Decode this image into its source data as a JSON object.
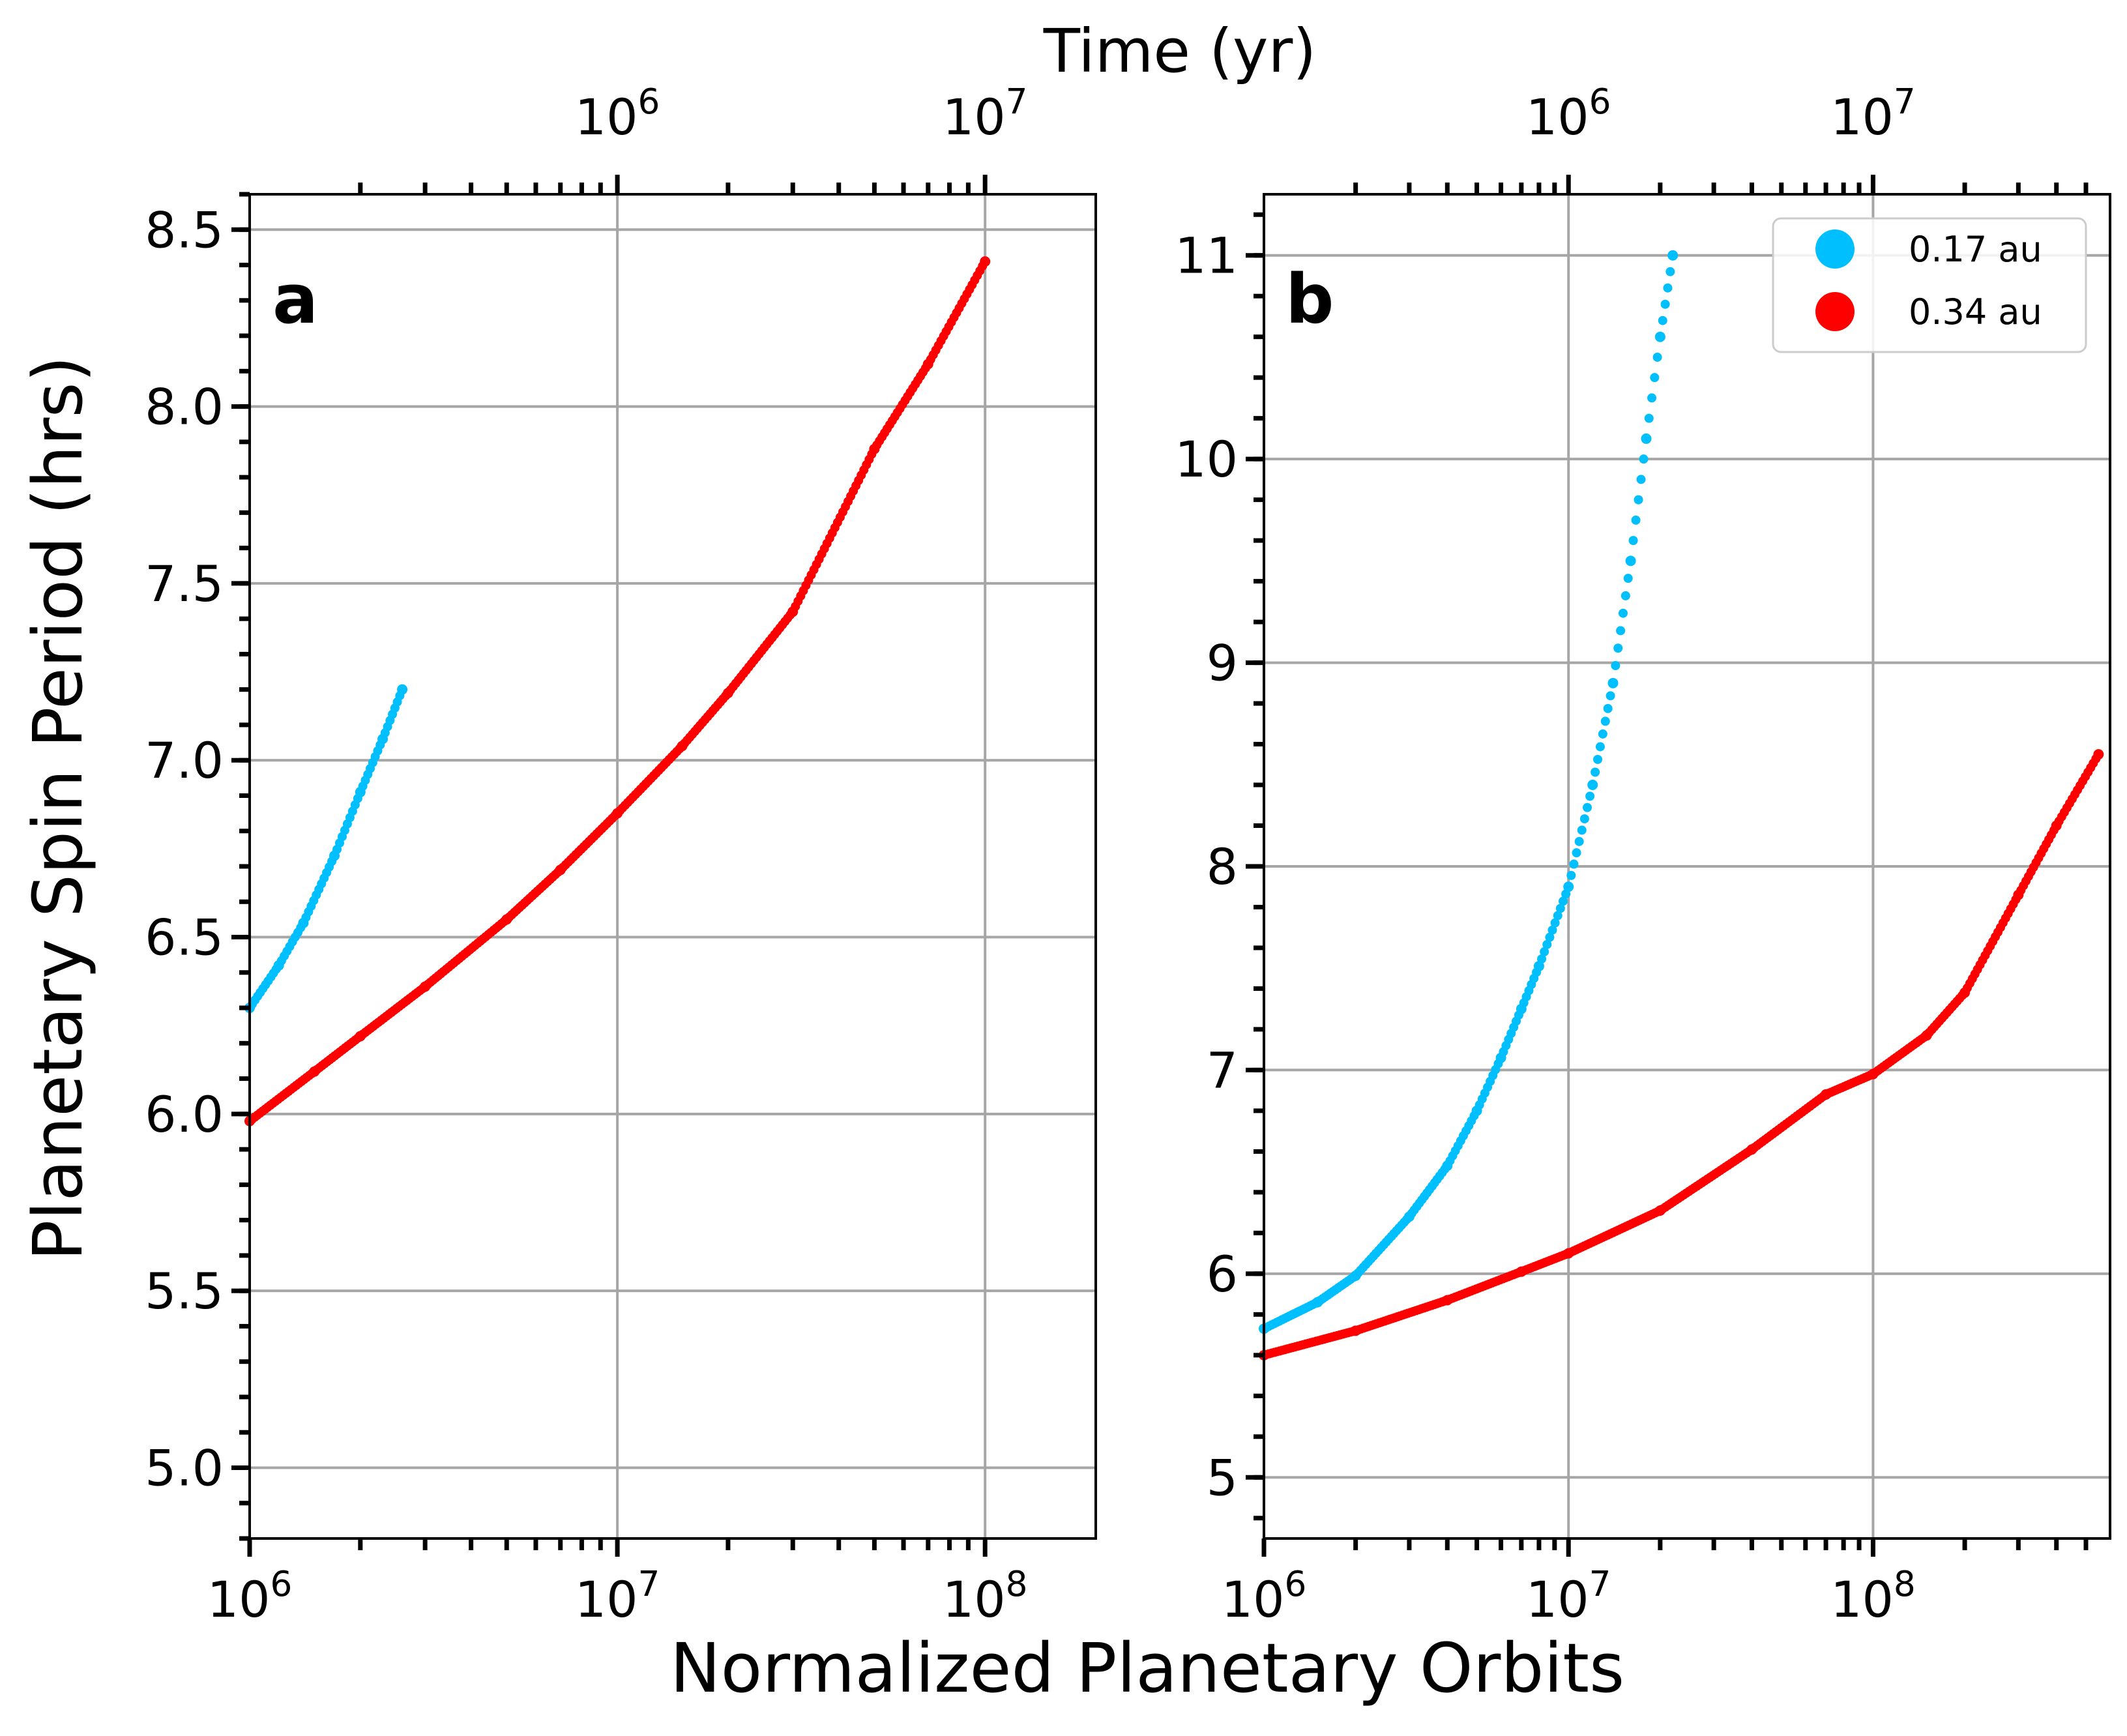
{
  "figure": {
    "top_axis_title": "Time (yr)",
    "bottom_axis_title": "Normalized Planetary Orbits",
    "y_axis_title": "Planetary Spin Period (hrs)"
  },
  "colors": {
    "series_0_17": "#00bfff",
    "series_0_34": "#ff0000",
    "grid": "#a6a6a6"
  },
  "chart_data": [
    {
      "type": "scatter",
      "panel_label": "a",
      "xscale": "log",
      "xlim": [
        1000000,
        200000000
      ],
      "ylim": [
        4.8,
        8.6
      ],
      "xlabel": "Normalized Planetary Orbits",
      "ylabel": "Planetary Spin Period (hrs)",
      "x_ticks": [
        1000000,
        10000000,
        100000000
      ],
      "x_tick_labels": [
        {
          "base": "10",
          "exp": "6"
        },
        {
          "base": "10",
          "exp": "7"
        },
        {
          "base": "10",
          "exp": "8"
        }
      ],
      "y_ticks": [
        5.0,
        5.5,
        6.0,
        6.5,
        7.0,
        7.5,
        8.0,
        8.5
      ],
      "y_tick_labels": [
        "5.0",
        "5.5",
        "6.0",
        "6.5",
        "7.0",
        "7.5",
        "8.0",
        "8.5"
      ],
      "top_axis": {
        "label": "Time (yr)",
        "ticks": [
          1000000,
          10000000
        ],
        "tick_labels": [
          {
            "base": "10",
            "exp": "6"
          },
          {
            "base": "10",
            "exp": "7"
          }
        ],
        "orbits_to_time_factor": 0.1
      },
      "grid": true,
      "series": [
        {
          "name": "0.17 au",
          "color": "#00bfff",
          "x": [
            1000000,
            1200000,
            1400000,
            1700000,
            2000000,
            2300000,
            2600000
          ],
          "y": [
            6.3,
            6.42,
            6.54,
            6.73,
            6.91,
            7.06,
            7.2
          ]
        },
        {
          "name": "0.34 au",
          "color": "#ff0000",
          "x": [
            1000000,
            1500000,
            2000000,
            3000000,
            5000000,
            7000000,
            10000000,
            15000000,
            20000000,
            30000000,
            50000000,
            70000000,
            100000000
          ],
          "y": [
            5.98,
            6.12,
            6.22,
            6.36,
            6.55,
            6.69,
            6.85,
            7.04,
            7.19,
            7.42,
            7.88,
            8.12,
            8.41
          ]
        }
      ]
    },
    {
      "type": "scatter",
      "panel_label": "b",
      "xscale": "log",
      "xlim": [
        1000000,
        600000000
      ],
      "ylim": [
        4.7,
        11.3
      ],
      "xlabel": "Normalized Planetary Orbits",
      "ylabel": "",
      "x_ticks": [
        1000000,
        10000000,
        100000000
      ],
      "x_tick_labels": [
        {
          "base": "10",
          "exp": "6"
        },
        {
          "base": "10",
          "exp": "7"
        },
        {
          "base": "10",
          "exp": "8"
        }
      ],
      "y_ticks": [
        5,
        6,
        7,
        8,
        9,
        10,
        11
      ],
      "y_tick_labels": [
        "5",
        "6",
        "7",
        "8",
        "9",
        "10",
        "11"
      ],
      "top_axis": {
        "label": "Time (yr)",
        "ticks": [
          1000000,
          10000000
        ],
        "tick_labels": [
          {
            "base": "10",
            "exp": "6"
          },
          {
            "base": "10",
            "exp": "7"
          }
        ],
        "orbits_to_time_factor": 0.1
      },
      "grid": true,
      "legend": {
        "placement": "top-right",
        "entries": [
          "0.17 au",
          "0.34 au"
        ]
      },
      "series": [
        {
          "name": "0.17 au",
          "color": "#00bfff",
          "x": [
            1000000,
            1500000,
            2000000,
            3000000,
            4000000,
            5000000,
            6000000,
            7000000,
            8000000,
            10000000,
            12000000,
            14000000,
            16000000,
            18000000,
            20000000,
            22000000
          ],
          "y": [
            5.73,
            5.86,
            5.99,
            6.28,
            6.53,
            6.8,
            7.06,
            7.3,
            7.51,
            7.9,
            8.4,
            8.9,
            9.5,
            10.1,
            10.6,
            11.0
          ]
        },
        {
          "name": "0.34 au",
          "color": "#ff0000",
          "x": [
            1000000,
            2000000,
            4000000,
            7000000,
            10000000,
            20000000,
            40000000,
            70000000,
            100000000,
            150000000,
            200000000,
            300000000,
            400000000,
            550000000
          ],
          "y": [
            5.6,
            5.72,
            5.87,
            6.01,
            6.1,
            6.31,
            6.61,
            6.88,
            6.98,
            7.17,
            7.38,
            7.86,
            8.2,
            8.55
          ]
        }
      ]
    }
  ]
}
